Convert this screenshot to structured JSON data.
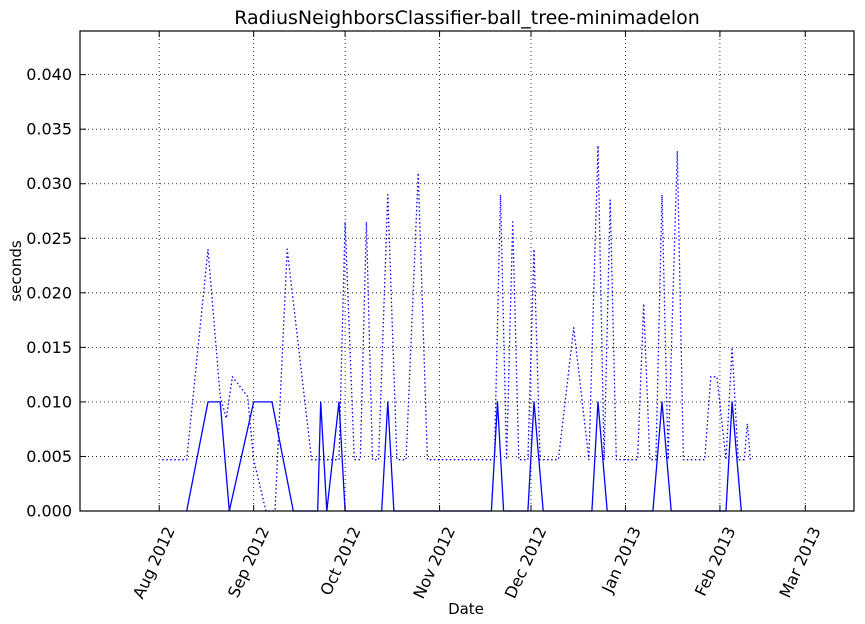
{
  "chart_data": {
    "type": "line",
    "title": "RadiusNeighborsClassifier-ball_tree-minimadelon",
    "xlabel": "Date",
    "ylabel": "seconds",
    "xlim": [
      "2012-07-06",
      "2013-03-17"
    ],
    "ylim": [
      0,
      0.044
    ],
    "grid": true,
    "x_ticks": [
      {
        "date": "2012-08-01",
        "label": "Aug 2012"
      },
      {
        "date": "2012-09-01",
        "label": "Sep 2012"
      },
      {
        "date": "2012-10-01",
        "label": "Oct 2012"
      },
      {
        "date": "2012-11-01",
        "label": "Nov 2012"
      },
      {
        "date": "2012-12-01",
        "label": "Dec 2012"
      },
      {
        "date": "2013-01-01",
        "label": "Jan 2013"
      },
      {
        "date": "2013-02-01",
        "label": "Feb 2013"
      },
      {
        "date": "2013-03-01",
        "label": "Mar 2013"
      }
    ],
    "y_ticks": [
      "0.000",
      "0.005",
      "0.010",
      "0.015",
      "0.020",
      "0.025",
      "0.030",
      "0.035",
      "0.040"
    ],
    "series": [
      {
        "style": "dotted",
        "color": "#0000ff",
        "points": [
          [
            "2012-08-02",
            0.0047
          ],
          [
            "2012-08-10",
            0.0047
          ],
          [
            "2012-08-17",
            0.024
          ],
          [
            "2012-08-21",
            0.0105
          ],
          [
            "2012-08-23",
            0.0085
          ],
          [
            "2012-08-25",
            0.0123
          ],
          [
            "2012-08-30",
            0.0105
          ],
          [
            "2012-09-01",
            0.0047
          ],
          [
            "2012-09-05",
            0.0
          ],
          [
            "2012-09-08",
            0.0
          ],
          [
            "2012-09-12",
            0.024
          ],
          [
            "2012-09-20",
            0.0047
          ],
          [
            "2012-09-24",
            0.0047
          ],
          [
            "2012-09-29",
            0.0047
          ],
          [
            "2012-10-01",
            0.0265
          ],
          [
            "2012-10-04",
            0.0047
          ],
          [
            "2012-10-06",
            0.0047
          ],
          [
            "2012-10-08",
            0.0265
          ],
          [
            "2012-10-10",
            0.0047
          ],
          [
            "2012-10-12",
            0.0047
          ],
          [
            "2012-10-15",
            0.029
          ],
          [
            "2012-10-18",
            0.0047
          ],
          [
            "2012-10-21",
            0.0047
          ],
          [
            "2012-10-25",
            0.031
          ],
          [
            "2012-10-28",
            0.0047
          ],
          [
            "2012-11-04",
            0.0047
          ],
          [
            "2012-11-12",
            0.0047
          ],
          [
            "2012-11-19",
            0.0047
          ],
          [
            "2012-11-21",
            0.029
          ],
          [
            "2012-11-23",
            0.0047
          ],
          [
            "2012-11-25",
            0.0265
          ],
          [
            "2012-11-27",
            0.0047
          ],
          [
            "2012-11-30",
            0.0047
          ],
          [
            "2012-12-02",
            0.024
          ],
          [
            "2012-12-04",
            0.0047
          ],
          [
            "2012-12-10",
            0.0047
          ],
          [
            "2012-12-15",
            0.0168
          ],
          [
            "2012-12-20",
            0.0047
          ],
          [
            "2012-12-23",
            0.0335
          ],
          [
            "2012-12-25",
            0.0047
          ],
          [
            "2012-12-27",
            0.0285
          ],
          [
            "2012-12-29",
            0.0047
          ],
          [
            "2013-01-05",
            0.0047
          ],
          [
            "2013-01-07",
            0.019
          ],
          [
            "2013-01-09",
            0.0047
          ],
          [
            "2013-01-11",
            0.0047
          ],
          [
            "2013-01-13",
            0.029
          ],
          [
            "2013-01-15",
            0.0047
          ],
          [
            "2013-01-18",
            0.033
          ],
          [
            "2013-01-20",
            0.0047
          ],
          [
            "2013-01-27",
            0.0047
          ],
          [
            "2013-01-29",
            0.0123
          ],
          [
            "2013-01-31",
            0.0123
          ],
          [
            "2013-02-03",
            0.0047
          ],
          [
            "2013-02-05",
            0.015
          ],
          [
            "2013-02-07",
            0.0047
          ],
          [
            "2013-02-09",
            0.0047
          ],
          [
            "2013-02-10",
            0.008
          ],
          [
            "2013-02-11",
            0.0047
          ]
        ]
      },
      {
        "style": "solid",
        "color": "#0000ff",
        "points": [
          [
            "2012-08-10",
            0.0
          ],
          [
            "2012-08-17",
            0.01
          ],
          [
            "2012-08-21",
            0.01
          ],
          [
            "2012-08-24",
            0.0
          ],
          [
            "2012-09-01",
            0.01
          ],
          [
            "2012-09-07",
            0.01
          ],
          [
            "2012-09-14",
            0.0
          ],
          [
            "2012-09-22",
            0.0
          ],
          [
            "2012-09-23",
            0.01
          ],
          [
            "2012-09-25",
            0.0
          ],
          [
            "2012-09-29",
            0.01
          ],
          [
            "2012-10-01",
            0.0
          ],
          [
            "2012-10-13",
            0.0
          ],
          [
            "2012-10-15",
            0.01
          ],
          [
            "2012-10-17",
            0.0
          ],
          [
            "2012-11-18",
            0.0
          ],
          [
            "2012-11-20",
            0.01
          ],
          [
            "2012-11-22",
            0.0
          ],
          [
            "2012-11-30",
            0.0
          ],
          [
            "2012-12-02",
            0.01
          ],
          [
            "2012-12-05",
            0.0
          ],
          [
            "2012-12-21",
            0.0
          ],
          [
            "2012-12-23",
            0.01
          ],
          [
            "2012-12-26",
            0.0
          ],
          [
            "2013-01-10",
            0.0
          ],
          [
            "2013-01-13",
            0.01
          ],
          [
            "2013-01-16",
            0.0
          ],
          [
            "2013-02-03",
            0.0
          ],
          [
            "2013-02-05",
            0.01
          ],
          [
            "2013-02-08",
            0.0
          ]
        ]
      }
    ]
  }
}
